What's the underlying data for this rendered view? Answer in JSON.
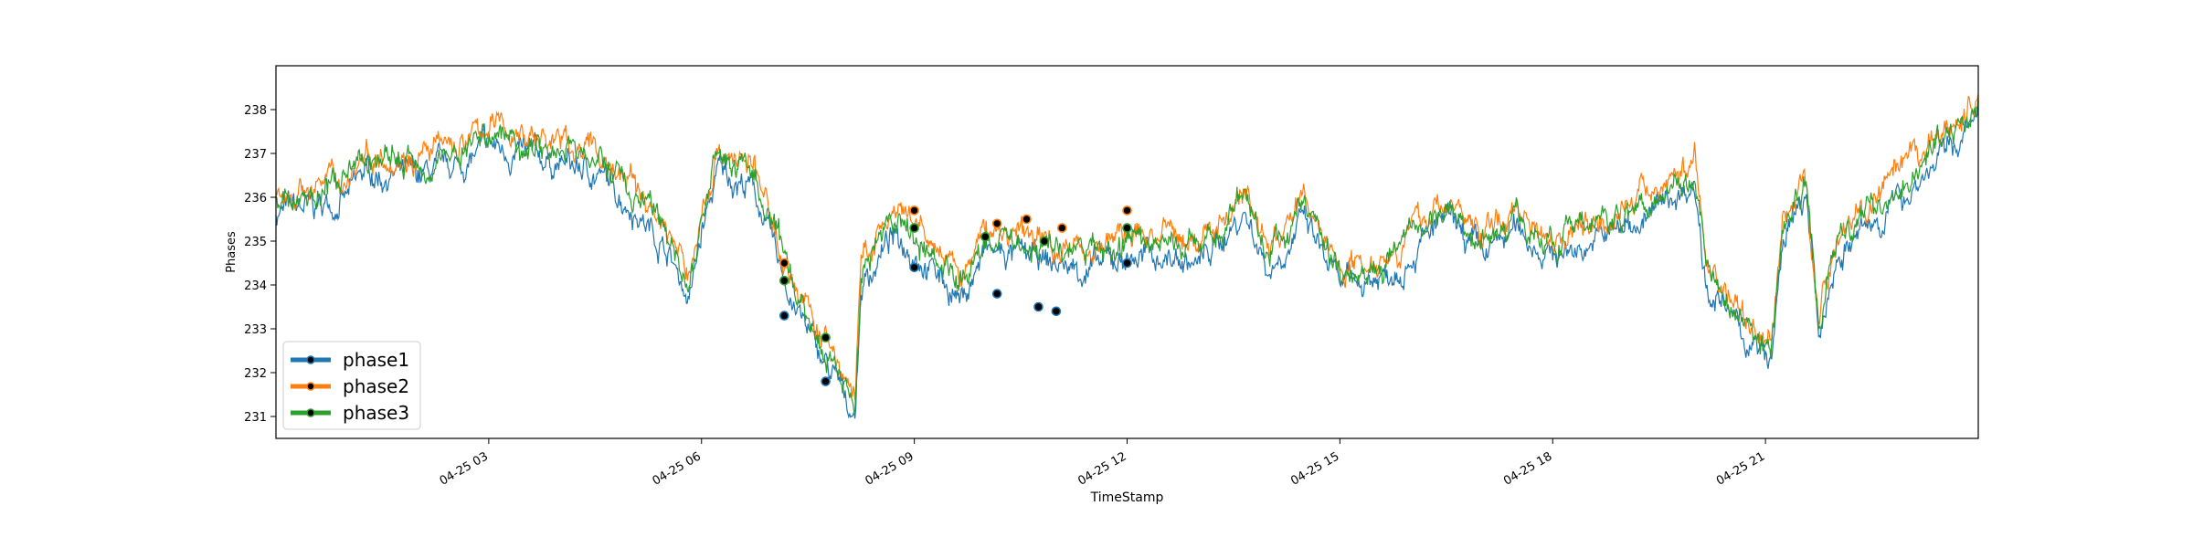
{
  "chart_data": {
    "type": "line",
    "title": "",
    "xlabel": "TimeStamp",
    "ylabel": "Phases",
    "x_range": [
      "2025-04-25 00:00",
      "2025-04-26 00:00"
    ],
    "ylim": [
      230.5,
      239.0
    ],
    "yticks": [
      231,
      232,
      233,
      234,
      235,
      236,
      237,
      238
    ],
    "xticks": [
      {
        "t": "2025-04-25 03:00",
        "label": "04-25 03"
      },
      {
        "t": "2025-04-25 06:00",
        "label": "04-25 06"
      },
      {
        "t": "2025-04-25 09:00",
        "label": "04-25 09"
      },
      {
        "t": "2025-04-25 12:00",
        "label": "04-25 12"
      },
      {
        "t": "2025-04-25 15:00",
        "label": "04-25 15"
      },
      {
        "t": "2025-04-25 18:00",
        "label": "04-25 18"
      },
      {
        "t": "2025-04-25 21:00",
        "label": "04-25 21"
      }
    ],
    "grid": false,
    "legend_position": "lower-left",
    "series": [
      {
        "name": "phase1",
        "color": "#1f77b4",
        "offset": -0.35
      },
      {
        "name": "phase2",
        "color": "#ff7f0e",
        "offset": 0.15
      },
      {
        "name": "phase3",
        "color": "#2ca02c",
        "offset": 0.0
      }
    ],
    "base_profile": [
      [
        "2025-04-25 00:00",
        236.0
      ],
      [
        "2025-04-25 00:30",
        236.1
      ],
      [
        "2025-04-25 01:00",
        236.3
      ],
      [
        "2025-04-25 01:15",
        236.9
      ],
      [
        "2025-04-25 02:00",
        236.8
      ],
      [
        "2025-04-25 02:40",
        237.1
      ],
      [
        "2025-04-25 03:00",
        237.5
      ],
      [
        "2025-04-25 03:45",
        237.2
      ],
      [
        "2025-04-25 04:30",
        236.9
      ],
      [
        "2025-04-25 05:00",
        236.2
      ],
      [
        "2025-04-25 05:30",
        235.2
      ],
      [
        "2025-04-25 05:50",
        234.0
      ],
      [
        "2025-04-25 06:00",
        235.5
      ],
      [
        "2025-04-25 06:15",
        237.0
      ],
      [
        "2025-04-25 06:45",
        236.5
      ],
      [
        "2025-04-25 07:00",
        235.2
      ],
      [
        "2025-04-25 07:20",
        233.8
      ],
      [
        "2025-04-25 07:45",
        232.5
      ],
      [
        "2025-04-25 08:10",
        231.4
      ],
      [
        "2025-04-25 08:15",
        234.3
      ],
      [
        "2025-04-25 08:40",
        235.4
      ],
      [
        "2025-04-25 09:00",
        235.2
      ],
      [
        "2025-04-25 09:40",
        234.0
      ],
      [
        "2025-04-25 10:00",
        235.1
      ],
      [
        "2025-04-25 10:30",
        235.0
      ],
      [
        "2025-04-25 11:00",
        234.8
      ],
      [
        "2025-04-25 11:30",
        234.7
      ],
      [
        "2025-04-25 12:00",
        235.0
      ],
      [
        "2025-04-25 12:30",
        235.0
      ],
      [
        "2025-04-25 13:00",
        234.8
      ],
      [
        "2025-04-25 13:40",
        236.0
      ],
      [
        "2025-04-25 14:00",
        234.7
      ],
      [
        "2025-04-25 14:30",
        235.8
      ],
      [
        "2025-04-25 15:00",
        234.3
      ],
      [
        "2025-04-25 15:40",
        234.6
      ],
      [
        "2025-04-25 16:30",
        235.8
      ],
      [
        "2025-04-25 17:00",
        235.0
      ],
      [
        "2025-04-25 17:30",
        235.6
      ],
      [
        "2025-04-25 18:00",
        235.0
      ],
      [
        "2025-04-25 18:40",
        235.4
      ],
      [
        "2025-04-25 19:20",
        235.9
      ],
      [
        "2025-04-25 20:00",
        236.7
      ],
      [
        "2025-04-25 20:10",
        234.4
      ],
      [
        "2025-04-25 20:40",
        233.2
      ],
      [
        "2025-04-25 21:05",
        232.5
      ],
      [
        "2025-04-25 21:15",
        235.4
      ],
      [
        "2025-04-25 21:35",
        236.3
      ],
      [
        "2025-04-25 21:45",
        233.0
      ],
      [
        "2025-04-25 22:00",
        235.0
      ],
      [
        "2025-04-25 22:30",
        235.7
      ],
      [
        "2025-04-25 23:00",
        236.5
      ],
      [
        "2025-04-25 23:30",
        237.3
      ],
      [
        "2025-04-26 00:00",
        238.1
      ]
    ],
    "anomalies": [
      {
        "series": "phase1",
        "points": [
          [
            "2025-04-25 07:10",
            233.3
          ],
          [
            "2025-04-25 07:45",
            231.8
          ],
          [
            "2025-04-25 09:00",
            234.4
          ],
          [
            "2025-04-25 10:10",
            233.8
          ],
          [
            "2025-04-25 10:45",
            233.5
          ],
          [
            "2025-04-25 11:00",
            233.4
          ],
          [
            "2025-04-25 12:00",
            234.5
          ]
        ]
      },
      {
        "series": "phase2",
        "points": [
          [
            "2025-04-25 07:10",
            234.5
          ],
          [
            "2025-04-25 09:00",
            235.7
          ],
          [
            "2025-04-25 10:10",
            235.4
          ],
          [
            "2025-04-25 10:35",
            235.5
          ],
          [
            "2025-04-25 11:05",
            235.3
          ],
          [
            "2025-04-25 12:00",
            235.7
          ]
        ]
      },
      {
        "series": "phase3",
        "points": [
          [
            "2025-04-25 07:10",
            234.1
          ],
          [
            "2025-04-25 07:45",
            232.8
          ],
          [
            "2025-04-25 09:00",
            235.3
          ],
          [
            "2025-04-25 10:00",
            235.1
          ],
          [
            "2025-04-25 10:50",
            235.0
          ],
          [
            "2025-04-25 12:00",
            235.3
          ]
        ]
      }
    ]
  }
}
